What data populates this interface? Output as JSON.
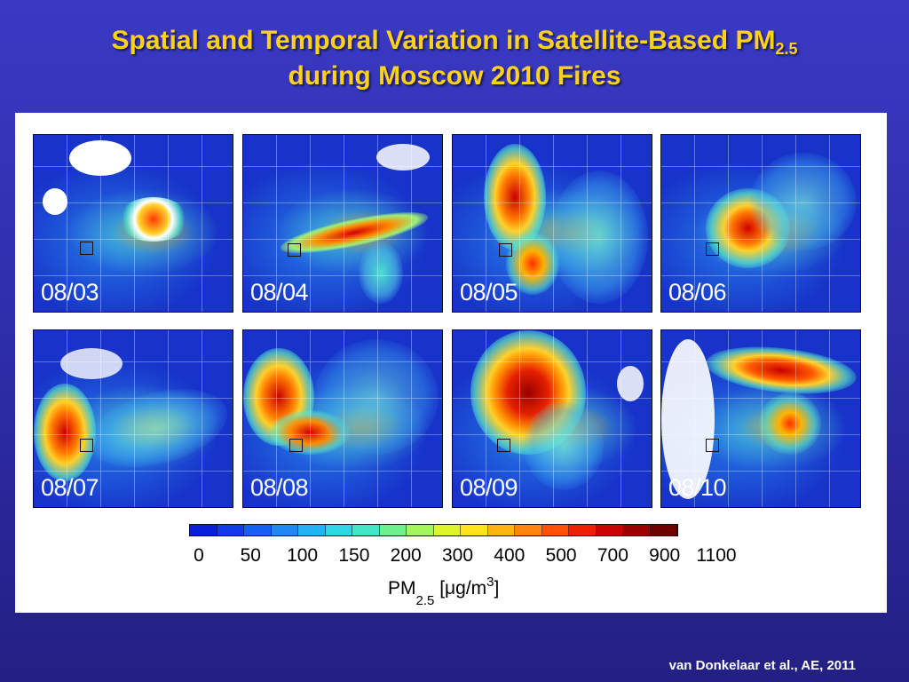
{
  "slide": {
    "title_line1": "Spatial and Temporal Variation in Satellite-Based PM",
    "title_subscript": "2.5",
    "title_line2": "during Moscow 2010 Fires",
    "citation": "van Donkelaar et al., AE, 2011"
  },
  "figure": {
    "panels": [
      {
        "date": "08/03"
      },
      {
        "date": "08/04"
      },
      {
        "date": "08/05"
      },
      {
        "date": "08/06"
      },
      {
        "date": "08/07"
      },
      {
        "date": "08/08"
      },
      {
        "date": "08/09"
      },
      {
        "date": "08/10"
      }
    ],
    "colorbar": {
      "ticks": [
        "0",
        "50",
        "100",
        "150",
        "200",
        "300",
        "400",
        "500",
        "700",
        "900",
        "1100"
      ],
      "label_main": "PM",
      "label_sub": "2.5",
      "label_units_open": "[",
      "label_mu": "μ",
      "label_units": "g/m",
      "label_sup": "3",
      "label_units_close": "]",
      "colors": [
        "#0a1fd8",
        "#0f3ce6",
        "#1560f0",
        "#1e88f5",
        "#25b2f5",
        "#2fd6e6",
        "#42e6c2",
        "#6ef08e",
        "#a4f55a",
        "#dcf52c",
        "#ffe41c",
        "#ffb414",
        "#ff840e",
        "#ff5208",
        "#ee2004",
        "#c80404",
        "#9a0202",
        "#6e0000"
      ]
    }
  }
}
